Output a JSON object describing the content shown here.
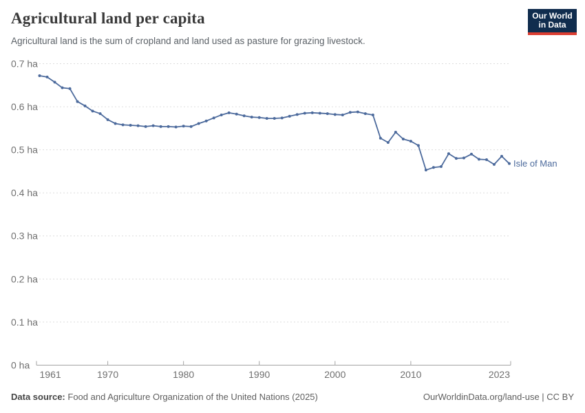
{
  "header": {
    "title": "Agricultural land per capita",
    "subtitle": "Agricultural land is the sum of cropland and land used as pasture for grazing livestock."
  },
  "logo": {
    "line1": "Our World",
    "line2": "in Data",
    "bg_color": "#102d4e",
    "accent_color": "#dc3e32"
  },
  "chart_data": {
    "type": "line",
    "title": "Agricultural land per capita",
    "unit": "ha",
    "grid": true,
    "legend_position": "end-of-line-label",
    "xlim": [
      1961,
      2023
    ],
    "ylim": [
      0,
      0.7
    ],
    "x": [
      1961,
      1962,
      1963,
      1964,
      1965,
      1966,
      1967,
      1968,
      1969,
      1970,
      1971,
      1972,
      1973,
      1974,
      1975,
      1976,
      1977,
      1978,
      1979,
      1980,
      1981,
      1982,
      1983,
      1984,
      1985,
      1986,
      1987,
      1988,
      1989,
      1990,
      1991,
      1992,
      1993,
      1994,
      1995,
      1996,
      1997,
      1998,
      1999,
      2000,
      2001,
      2002,
      2003,
      2004,
      2005,
      2006,
      2007,
      2008,
      2009,
      2010,
      2011,
      2012,
      2013,
      2014,
      2015,
      2016,
      2017,
      2018,
      2019,
      2020,
      2021,
      2022,
      2023
    ],
    "series": [
      {
        "name": "Isle of Man",
        "color": "#4C6A9C",
        "values": [
          0.672,
          0.669,
          0.657,
          0.644,
          0.642,
          0.612,
          0.602,
          0.59,
          0.584,
          0.57,
          0.561,
          0.558,
          0.557,
          0.556,
          0.554,
          0.556,
          0.554,
          0.554,
          0.553,
          0.555,
          0.554,
          0.561,
          0.567,
          0.574,
          0.581,
          0.586,
          0.583,
          0.579,
          0.576,
          0.575,
          0.573,
          0.573,
          0.574,
          0.578,
          0.582,
          0.585,
          0.586,
          0.585,
          0.584,
          0.582,
          0.581,
          0.587,
          0.588,
          0.584,
          0.581,
          0.527,
          0.517,
          0.541,
          0.525,
          0.52,
          0.51,
          0.453,
          0.459,
          0.461,
          0.491,
          0.48,
          0.481,
          0.49,
          0.478,
          0.477,
          0.466,
          0.485,
          0.468
        ]
      }
    ],
    "end_label": "Isle of Man",
    "y_ticks": [
      {
        "value": 0,
        "label": "0 ha"
      },
      {
        "value": 0.1,
        "label": "0.1 ha"
      },
      {
        "value": 0.2,
        "label": "0.2 ha"
      },
      {
        "value": 0.3,
        "label": "0.3 ha"
      },
      {
        "value": 0.4,
        "label": "0.4 ha"
      },
      {
        "value": 0.5,
        "label": "0.5 ha"
      },
      {
        "value": 0.6,
        "label": "0.6 ha"
      },
      {
        "value": 0.7,
        "label": "0.7 ha"
      }
    ],
    "x_ticks": [
      {
        "value": 1961,
        "label": "1961"
      },
      {
        "value": 1970,
        "label": "1970"
      },
      {
        "value": 1980,
        "label": "1980"
      },
      {
        "value": 1990,
        "label": "1990"
      },
      {
        "value": 2000,
        "label": "2000"
      },
      {
        "value": 2010,
        "label": "2010"
      },
      {
        "value": 2023,
        "label": "2023"
      }
    ],
    "colors": {
      "grid": "#dcdcdc",
      "axis": "#a3a3a3",
      "tick_text": "#6f6f6f",
      "line": "#4C6A9C",
      "end_label": "#4C6A9C"
    }
  },
  "footer": {
    "source_label": "Data source:",
    "source_text": "Food and Agriculture Organization of the United Nations (2025)",
    "license_text": "OurWorldinData.org/land-use | CC BY"
  }
}
